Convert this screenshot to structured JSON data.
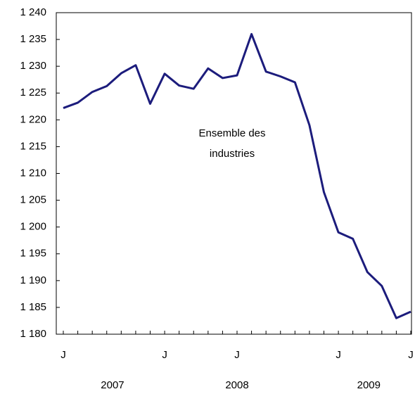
{
  "chart_data": {
    "type": "line",
    "categories": [
      "J",
      null,
      null,
      null,
      null,
      null,
      null,
      "J",
      null,
      null,
      null,
      null,
      "J",
      null,
      null,
      null,
      null,
      null,
      null,
      "J",
      null,
      null,
      null,
      null,
      "J"
    ],
    "year_labels": [
      "2007",
      "2008",
      "2009"
    ],
    "annotation": [
      "Ensemble des",
      "industries"
    ],
    "series": [
      {
        "color": "#1c1c7c",
        "values": [
          1222.2,
          1223.2,
          1225.2,
          1226.3,
          1228.7,
          1230.2,
          1223.0,
          1228.6,
          1226.4,
          1225.8,
          1229.6,
          1227.8,
          1228.3,
          1236.0,
          1229.0,
          1228.1,
          1227.0,
          1219.0,
          1206.5,
          1199.0,
          1197.8,
          1191.6,
          1189.0,
          1183.0,
          1184.2
        ]
      }
    ],
    "ylim": [
      1180,
      1240
    ],
    "yticks": [
      {
        "value": 1180,
        "label": "1 180"
      },
      {
        "value": 1185,
        "label": "1 185"
      },
      {
        "value": 1190,
        "label": "1 190"
      },
      {
        "value": 1195,
        "label": "1 195"
      },
      {
        "value": 1200,
        "label": "1 200"
      },
      {
        "value": 1205,
        "label": "1 205"
      },
      {
        "value": 1210,
        "label": "1 210"
      },
      {
        "value": 1215,
        "label": "1 215"
      },
      {
        "value": 1220,
        "label": "1 220"
      },
      {
        "value": 1225,
        "label": "1 225"
      },
      {
        "value": 1230,
        "label": "1 230"
      },
      {
        "value": 1235,
        "label": "1 235"
      },
      {
        "value": 1240,
        "label": "1 240"
      }
    ],
    "grid": false
  }
}
